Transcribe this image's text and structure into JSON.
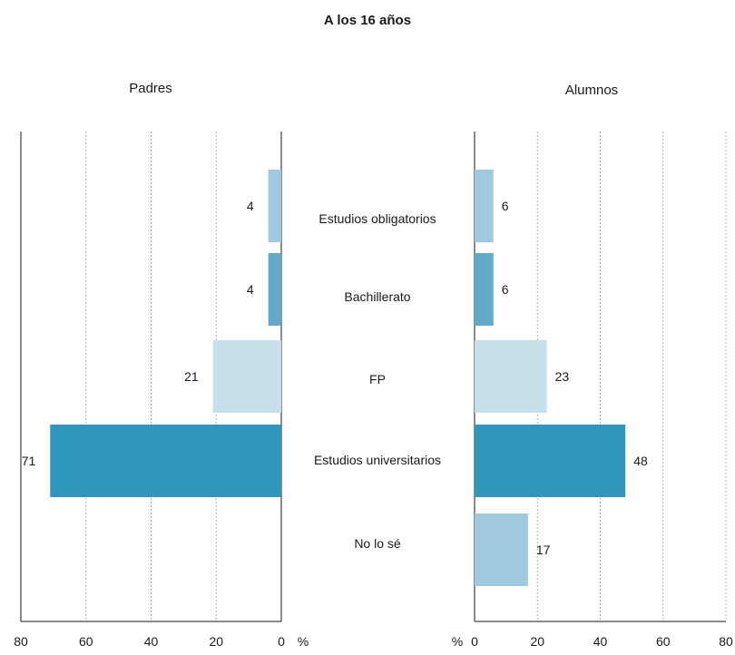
{
  "chart_data": {
    "type": "bar",
    "title": "A los 16 años",
    "categories": [
      "Estudios obligatorios",
      "Bachillerato",
      "FP",
      "Estudios universitarios",
      "No lo sé"
    ],
    "unit": "%",
    "xlim": [
      0,
      80
    ],
    "ticks": [
      0,
      20,
      40,
      60,
      80
    ],
    "grid": true,
    "colors": [
      "#9fc9de",
      "#62aac9",
      "#c7e0ec",
      "#2f97bc",
      "#9fc9de"
    ],
    "panels": [
      {
        "name": "Padres",
        "values": [
          4,
          4,
          21,
          71,
          null
        ]
      },
      {
        "name": "Alumnos",
        "values": [
          6,
          6,
          23,
          48,
          17
        ]
      }
    ]
  }
}
